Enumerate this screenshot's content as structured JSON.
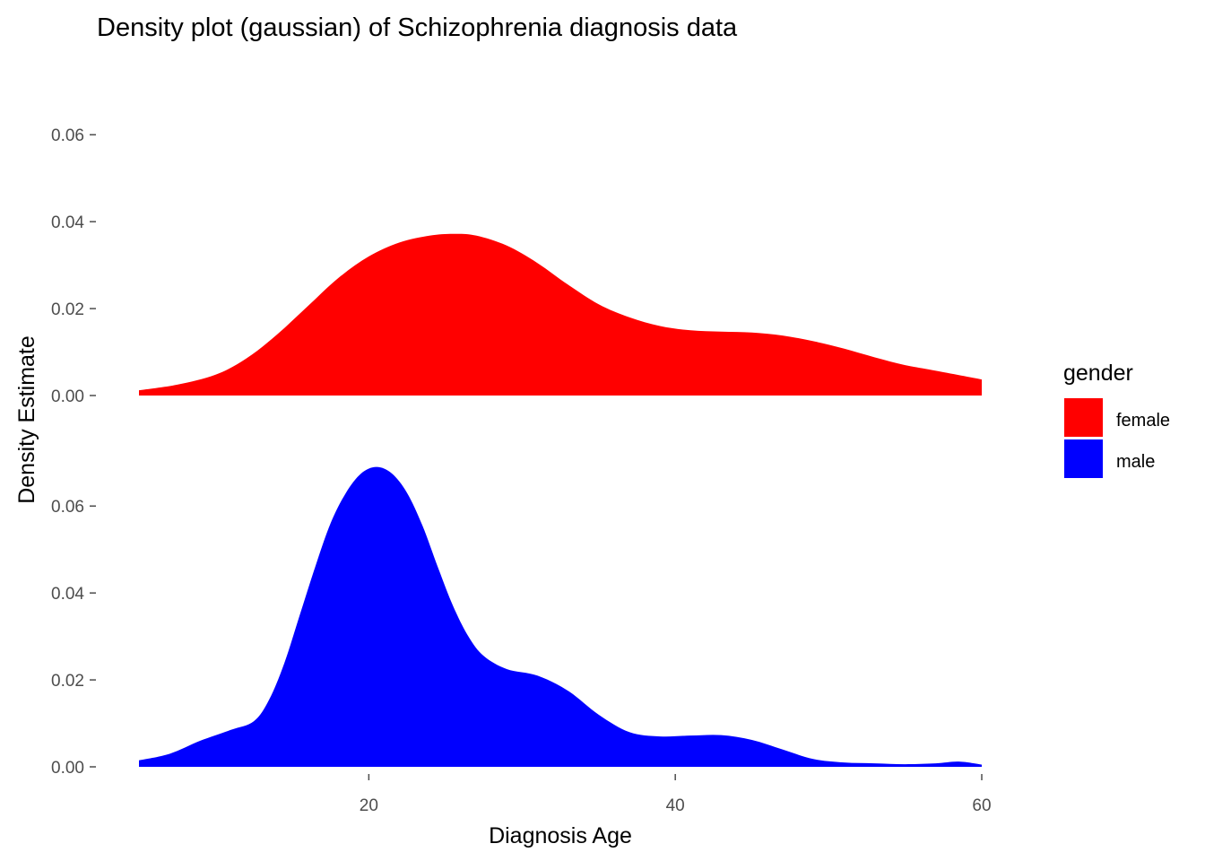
{
  "chart_data": {
    "type": "area",
    "title": "Density plot (gaussian) of Schizophrenia diagnosis data",
    "xlabel": "Diagnosis Age",
    "ylabel": "Density Estimate",
    "xlim": [
      5,
      60
    ],
    "x_ticks": [
      20,
      40,
      60
    ],
    "ylim": [
      0,
      0.065
    ],
    "y_ticks": [
      0.0,
      0.02,
      0.04,
      0.06
    ],
    "y_tick_labels": [
      "0.00",
      "0.02",
      "0.04",
      "0.06"
    ],
    "facets": [
      "female",
      "male"
    ],
    "grid": false,
    "legend": {
      "title": "gender",
      "position": "right",
      "entries": [
        {
          "label": "female",
          "color": "#ff0000"
        },
        {
          "label": "male",
          "color": "#0000ff"
        }
      ]
    },
    "series": [
      {
        "name": "female",
        "color": "#ff0000",
        "x": [
          5.0,
          7.5,
          10.0,
          12.0,
          14.0,
          16.0,
          18.0,
          20.0,
          22.0,
          24.0,
          25.5,
          27.0,
          29.0,
          31.0,
          33.0,
          35.0,
          37.0,
          39.0,
          41.0,
          43.0,
          45.0,
          47.0,
          49.0,
          51.0,
          53.0,
          55.0,
          57.0,
          60.0
        ],
        "values": [
          0.0012,
          0.0025,
          0.0048,
          0.0085,
          0.014,
          0.0205,
          0.027,
          0.032,
          0.0352,
          0.0368,
          0.0372,
          0.0368,
          0.0345,
          0.0305,
          0.0255,
          0.021,
          0.018,
          0.016,
          0.015,
          0.0147,
          0.0145,
          0.0138,
          0.0125,
          0.0108,
          0.0088,
          0.007,
          0.0057,
          0.0037
        ]
      },
      {
        "name": "male",
        "color": "#0000ff",
        "x": [
          5.0,
          7.0,
          9.0,
          11.0,
          12.5,
          13.5,
          14.5,
          15.5,
          16.5,
          17.5,
          18.5,
          19.5,
          20.5,
          21.5,
          22.5,
          23.5,
          24.5,
          25.5,
          26.5,
          27.5,
          29.0,
          31.0,
          33.0,
          35.0,
          37.0,
          39.0,
          41.0,
          43.0,
          45.0,
          47.0,
          49.0,
          51.0,
          53.0,
          55.0,
          57.0,
          58.5,
          60.0
        ],
        "values": [
          0.0015,
          0.003,
          0.006,
          0.0085,
          0.0105,
          0.0155,
          0.024,
          0.035,
          0.046,
          0.056,
          0.063,
          0.0675,
          0.069,
          0.0675,
          0.063,
          0.0555,
          0.046,
          0.037,
          0.03,
          0.0255,
          0.0225,
          0.021,
          0.0175,
          0.012,
          0.008,
          0.007,
          0.0072,
          0.0073,
          0.0062,
          0.004,
          0.0018,
          0.001,
          0.0008,
          0.0006,
          0.0008,
          0.0012,
          0.0005
        ]
      }
    ]
  }
}
